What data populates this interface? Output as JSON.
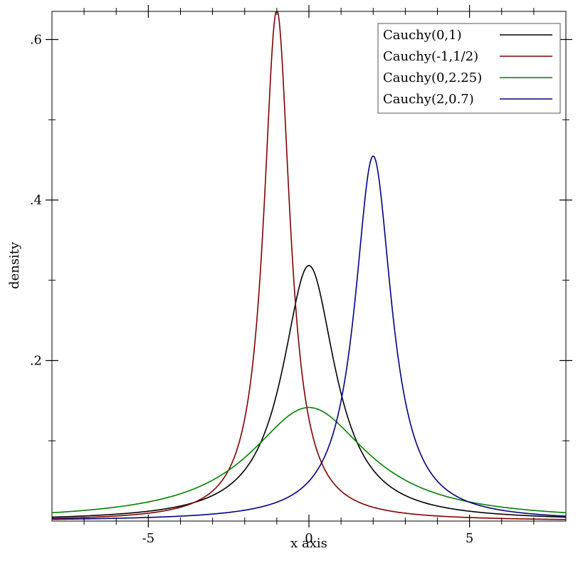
{
  "chart_data": {
    "type": "line",
    "xlabel": "x axis",
    "ylabel": "density",
    "xlim": [
      -8,
      8
    ],
    "ylim": [
      0,
      0.635
    ],
    "x_ticks": [
      {
        "value": -5,
        "label": "-5"
      },
      {
        "value": 0,
        "label": "0"
      },
      {
        "value": 5,
        "label": "5"
      }
    ],
    "x_minor_ticks": [
      -7,
      -6,
      -4,
      -3,
      -2,
      -1,
      1,
      2,
      3,
      4,
      6,
      7
    ],
    "y_ticks": [
      {
        "value": 0.2,
        "label": ".2"
      },
      {
        "value": 0.4,
        "label": ".4"
      },
      {
        "value": 0.6,
        "label": ".6"
      }
    ],
    "y_minor_ticks": [
      0.1,
      0.3,
      0.5
    ],
    "legend_position": "top-right",
    "grid": false,
    "series": [
      {
        "name": "Cauchy(0,1)",
        "distribution": "cauchy",
        "location": 0,
        "scale": 1,
        "color": "#000000"
      },
      {
        "name": "Cauchy(-1,1/2)",
        "distribution": "cauchy",
        "location": -1,
        "scale": 0.5,
        "color": "#800000"
      },
      {
        "name": "Cauchy(0,2.25)",
        "distribution": "cauchy",
        "location": 0,
        "scale": 2.25,
        "color": "#008000"
      },
      {
        "name": "Cauchy(2,0.7)",
        "distribution": "cauchy",
        "location": 2,
        "scale": 0.7,
        "color": "#000080"
      }
    ]
  }
}
